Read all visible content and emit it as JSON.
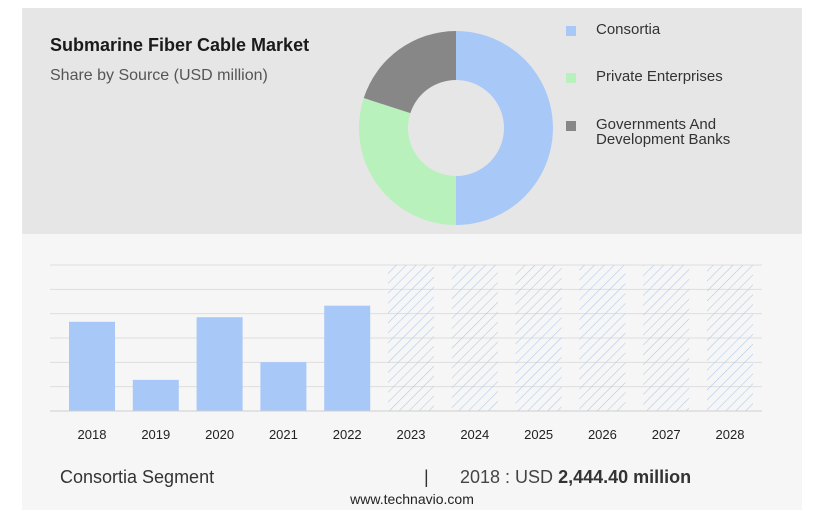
{
  "header": {
    "title": "Submarine Fiber Cable Market",
    "subtitle": "Share by Source (USD million)"
  },
  "colors": {
    "consortia": "#a8c8f8",
    "private": "#b9f1bc",
    "governments": "#878787",
    "forecast_hatch": "#b3cbe9"
  },
  "chart_data": [
    {
      "type": "pie",
      "style": "donut",
      "legend_position": "right",
      "categories": [
        "Consortia",
        "Private Enterprises",
        "Governments And Development Banks"
      ],
      "legend_lines": [
        [
          "Consortia"
        ],
        [
          "Private Enterprises"
        ],
        [
          "Governments And",
          "Development Banks"
        ]
      ],
      "values": [
        50,
        30,
        20
      ]
    },
    {
      "type": "bar",
      "categories": [
        "2018",
        "2019",
        "2020",
        "2021",
        "2022",
        "2023",
        "2024",
        "2025",
        "2026",
        "2027",
        "2028"
      ],
      "values": [
        2444.4,
        853,
        2569,
        1339,
        2886,
        null,
        null,
        null,
        null,
        null,
        null
      ],
      "forecast": [
        false,
        false,
        false,
        false,
        false,
        true,
        true,
        true,
        true,
        true,
        true
      ],
      "ylim": [
        0,
        4000
      ],
      "grid": true
    }
  ],
  "summary": {
    "segment_label": "Consortia Segment",
    "divider": "|",
    "year_text": "2018 : USD ",
    "value_text": "2,444.40 million"
  },
  "footer": {
    "source_url": "www.technavio.com"
  }
}
